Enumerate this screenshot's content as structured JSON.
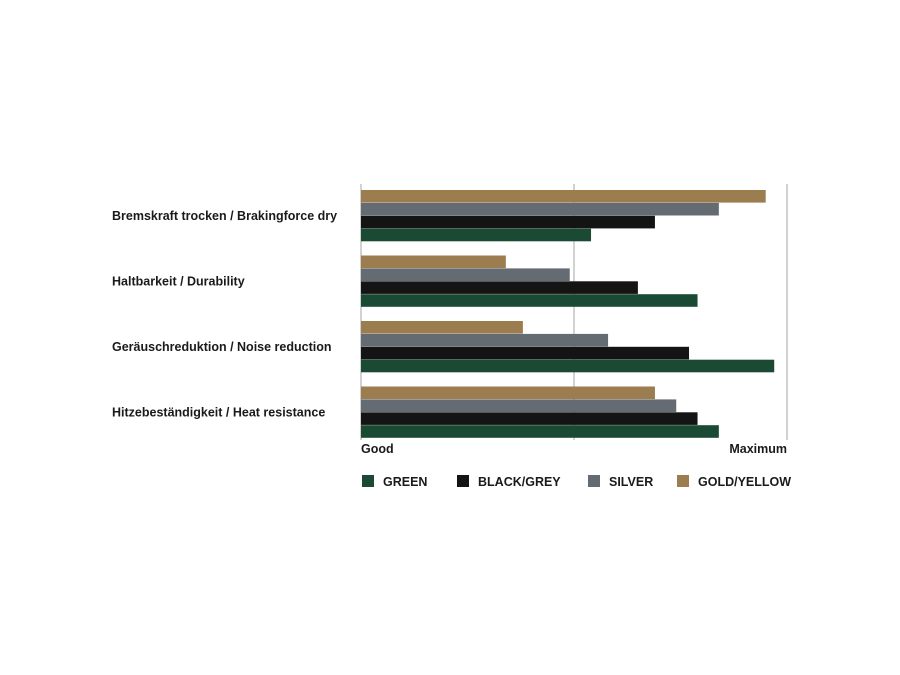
{
  "chart_data": {
    "type": "bar",
    "orientation": "horizontal",
    "categories": [
      "Bremskraft trocken / Brakingforce dry",
      "Haltbarkeit / Durability",
      "Geräuschreduktion / Noise reduction",
      "Hitzebeständigkeit / Heat resistance"
    ],
    "series": [
      {
        "name": "GREEN",
        "color": "#1a4a33",
        "values": [
          54,
          79,
          97,
          84
        ]
      },
      {
        "name": "BLACK/GREY",
        "color": "#141414",
        "values": [
          69,
          65,
          77,
          79
        ]
      },
      {
        "name": "SILVER",
        "color": "#646b73",
        "values": [
          84,
          49,
          58,
          74
        ]
      },
      {
        "name": "GOLD/YELLOW",
        "color": "#9b7d4f",
        "values": [
          95,
          34,
          38,
          69
        ]
      }
    ],
    "xlim": [
      0,
      100
    ],
    "xtick_labels": {
      "start": "Good",
      "end": "Maximum"
    },
    "grid": true,
    "legend_position": "bottom"
  }
}
